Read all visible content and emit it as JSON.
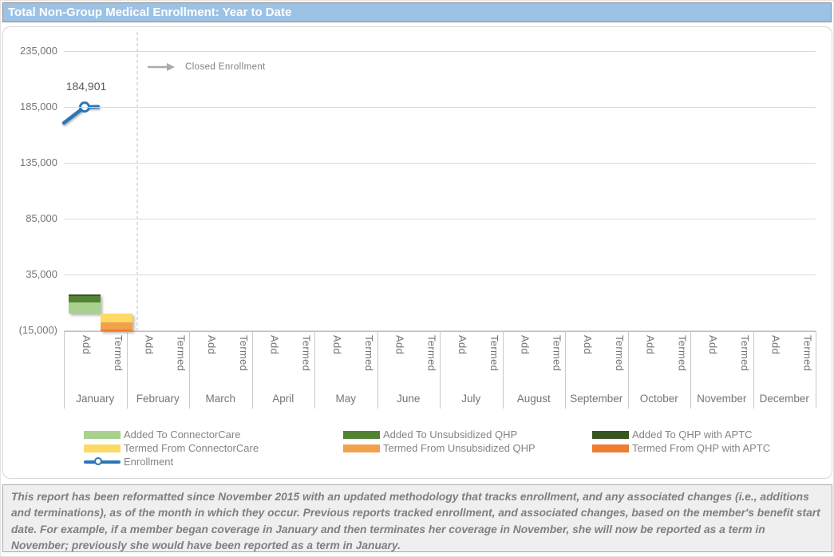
{
  "title_bar": {
    "text": "Total Non-Group Medical Enrollment: Year to Date"
  },
  "icons": {
    "closed_enrollment_arrow": "right-arrow"
  },
  "colors": {
    "title_bg": "#9CC2E5",
    "gridline": "#d9d9d9",
    "axis_text": "#757575",
    "enrollment_line": "#2E75B6",
    "footnote_bg": "#efefef"
  },
  "chart_data": {
    "type": "bar",
    "title": "Total Non-Group Medical Enrollment: Year to Date",
    "annotation": "Closed Enrollment",
    "categories": [
      "January",
      "February",
      "March",
      "April",
      "May",
      "June",
      "July",
      "August",
      "September",
      "October",
      "November",
      "December"
    ],
    "sub_categories": [
      "Add",
      "Termed"
    ],
    "y_axis": {
      "tick_labels": [
        "235,000",
        "185,000",
        "135,000",
        "85,000",
        "35,000",
        "(15,000)"
      ],
      "tick_values": [
        235000,
        185000,
        135000,
        85000,
        35000,
        -15000
      ],
      "ylim": [
        -15000,
        250000
      ],
      "grid": true
    },
    "series": [
      {
        "name": "Added To ConnectorCare",
        "color": "#A9D18E",
        "stack": "Add",
        "values": [
          10000,
          0,
          0,
          0,
          0,
          0,
          0,
          0,
          0,
          0,
          0,
          0
        ]
      },
      {
        "name": "Added To Unsubsidized QHP",
        "color": "#548235",
        "stack": "Add",
        "values": [
          5500,
          0,
          0,
          0,
          0,
          0,
          0,
          0,
          0,
          0,
          0,
          0
        ]
      },
      {
        "name": "Added To QHP with APTC",
        "color": "#375623",
        "stack": "Add",
        "values": [
          1500,
          0,
          0,
          0,
          0,
          0,
          0,
          0,
          0,
          0,
          0,
          0
        ]
      },
      {
        "name": "Termed From ConnectorCare",
        "color": "#FFD966",
        "stack": "Termed",
        "values": [
          -8000,
          0,
          0,
          0,
          0,
          0,
          0,
          0,
          0,
          0,
          0,
          0
        ]
      },
      {
        "name": "Termed From Unsubsidized QHP",
        "color": "#F1A14C",
        "stack": "Termed",
        "values": [
          -6500,
          0,
          0,
          0,
          0,
          0,
          0,
          0,
          0,
          0,
          0,
          0
        ]
      },
      {
        "name": "Termed From QHP with APTC",
        "color": "#ED7D31",
        "stack": "Termed",
        "values": [
          -1200,
          0,
          0,
          0,
          0,
          0,
          0,
          0,
          0,
          0,
          0,
          0
        ]
      }
    ],
    "line_series": {
      "name": "Enrollment",
      "color": "#2E75B6",
      "label": "184,901",
      "values": [
        184901,
        null,
        null,
        null,
        null,
        null,
        null,
        null,
        null,
        null,
        null,
        null
      ],
      "left_edge_value": 170700
    },
    "legend_position": "bottom"
  },
  "legend": {
    "items": [
      {
        "label": "Added To ConnectorCare",
        "color": "#A9D18E",
        "marker": "box"
      },
      {
        "label": "Termed From ConnectorCare",
        "color": "#FFD966",
        "marker": "box"
      },
      {
        "label": "Enrollment",
        "color": "#2E75B6",
        "marker": "line"
      },
      {
        "label": "Added To Unsubsidized QHP",
        "color": "#548235",
        "marker": "box"
      },
      {
        "label": "Termed From Unsubsidized QHP",
        "color": "#F1A14C",
        "marker": "box"
      },
      {
        "label": "Added To QHP with APTC",
        "color": "#375623",
        "marker": "box"
      },
      {
        "label": "Termed From QHP with APTC",
        "color": "#ED7D31",
        "marker": "box"
      }
    ]
  },
  "footnote": {
    "text": "This report has been reformatted since November 2015 with an updated methodology that tracks enrollment, and any associated changes (i.e., additions and terminations), as of the month in which they occur.  Previous reports tracked enrollment, and associated changes, based on the member's benefit start date.  For example, if a member began coverage in January and then terminates her coverage in November, she will now be reported as a term in November; previously she would have been reported as a term in January."
  }
}
